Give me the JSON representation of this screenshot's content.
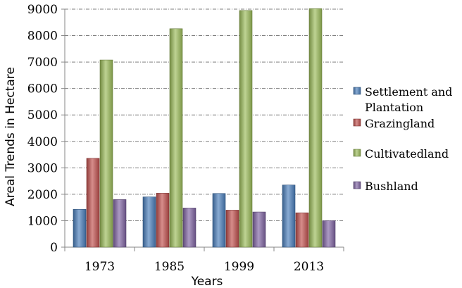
{
  "chart_data": {
    "type": "bar",
    "title": "",
    "xlabel": "Years",
    "ylabel": "Areal Trends in Hectare",
    "categories": [
      "1973",
      "1985",
      "1999",
      "2013"
    ],
    "ylim": [
      0,
      9000
    ],
    "yticks": [
      0,
      1000,
      2000,
      3000,
      4000,
      5000,
      6000,
      7000,
      8000,
      9000
    ],
    "grid": true,
    "legend_position": "right",
    "series": [
      {
        "name": "Settlement and Plantation",
        "color": "#4a7ebb",
        "values": [
          1430,
          1900,
          2030,
          2350
        ]
      },
      {
        "name": "Grazingland",
        "color": "#c0504d",
        "values": [
          3360,
          2040,
          1400,
          1300
        ]
      },
      {
        "name": "Cultivatedland",
        "color": "#9bbb59",
        "values": [
          7080,
          8260,
          8950,
          9020
        ]
      },
      {
        "name": "Bushland",
        "color": "#8064a2",
        "values": [
          1800,
          1480,
          1330,
          1000
        ]
      }
    ]
  }
}
